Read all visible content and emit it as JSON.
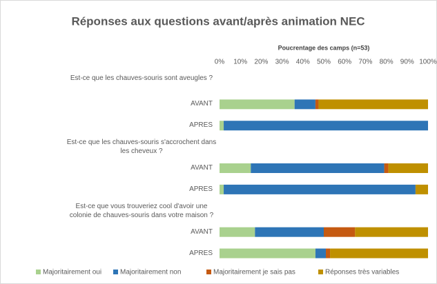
{
  "chart_data": {
    "type": "stacked-bar-horizontal",
    "title": "Réponses aux questions avant/après animation NEC",
    "x_axis_label": "Poucrentage des camps (n=53)",
    "categories": [
      "Est-ce que les chauves-souris sont aveugles ?",
      "AVANT",
      "APRES",
      "Est-ce que les chauves-souris s'accrochent dans les cheveux ?",
      "AVANT",
      "APRES",
      "Est-ce que vous trouveriez cool d'avoir une colonie de chauves-souris dans votre maison ?",
      "AVANT",
      "APRES"
    ],
    "series": [
      {
        "name": "Majoritairement oui",
        "color": "#a9d18e",
        "values": [
          null,
          36,
          2,
          null,
          15,
          2,
          null,
          17,
          46
        ]
      },
      {
        "name": "Majoritairement non",
        "color": "#2e75b6",
        "values": [
          null,
          10,
          98,
          null,
          64,
          92,
          null,
          33,
          5
        ]
      },
      {
        "name": "Majoritairement je sais pas",
        "color": "#c55a11",
        "values": [
          null,
          1.5,
          0,
          null,
          2,
          0,
          null,
          15,
          2
        ]
      },
      {
        "name": "Réponses très variables",
        "color": "#bf9000",
        "values": [
          null,
          52.5,
          0,
          null,
          19,
          6,
          null,
          35,
          47
        ]
      }
    ],
    "xlim": [
      0,
      100
    ],
    "xticks": [
      {
        "value": 0,
        "label": "0%"
      },
      {
        "value": 10,
        "label": "10%"
      },
      {
        "value": 20,
        "label": "20%"
      },
      {
        "value": 30,
        "label": "30%"
      },
      {
        "value": 40,
        "label": "40%"
      },
      {
        "value": 50,
        "label": "50%"
      },
      {
        "value": 60,
        "label": "60%"
      },
      {
        "value": 70,
        "label": "70%"
      },
      {
        "value": 80,
        "label": "80%"
      },
      {
        "value": 90,
        "label": "90%"
      },
      {
        "value": 100,
        "label": "100%"
      }
    ],
    "legend": "bottom"
  }
}
